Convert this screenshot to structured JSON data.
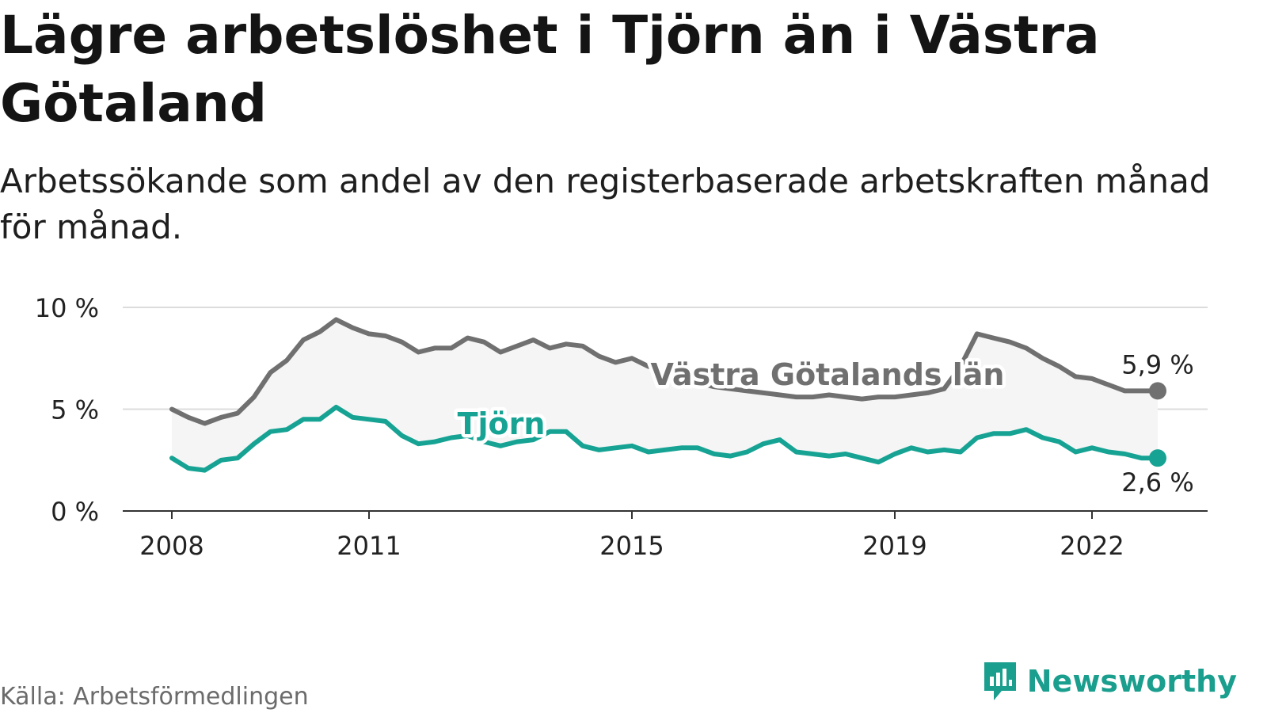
{
  "title": "Lägre arbetslöshet i Tjörn än i Västra Götaland",
  "subtitle": "Arbetssökande som andel av den registerbaserade arbetskraften månad för månad.",
  "source": "Källa: Arbetsförmedlingen",
  "brand": "Newsworthy",
  "chart_data": {
    "type": "line",
    "x_ticks": [
      2008,
      2011,
      2015,
      2019,
      2022
    ],
    "y_ticks": [
      0,
      5,
      10
    ],
    "y_tick_labels": [
      "0 %",
      "5 %",
      "10 %"
    ],
    "xlim": [
      2008.0,
      2023.0
    ],
    "ylim": [
      0,
      10
    ],
    "grid": true,
    "series": [
      {
        "name": "Västra Götalands län",
        "color": "#707070",
        "end_label": "5,9 %",
        "x": [
          2008.0,
          2008.25,
          2008.5,
          2008.75,
          2009.0,
          2009.25,
          2009.5,
          2009.75,
          2010.0,
          2010.25,
          2010.5,
          2010.75,
          2011.0,
          2011.25,
          2011.5,
          2011.75,
          2012.0,
          2012.25,
          2012.5,
          2012.75,
          2013.0,
          2013.25,
          2013.5,
          2013.75,
          2014.0,
          2014.25,
          2014.5,
          2014.75,
          2015.0,
          2015.25,
          2015.5,
          2015.75,
          2016.0,
          2016.25,
          2016.5,
          2016.75,
          2017.0,
          2017.25,
          2017.5,
          2017.75,
          2018.0,
          2018.25,
          2018.5,
          2018.75,
          2019.0,
          2019.25,
          2019.5,
          2019.75,
          2020.0,
          2020.25,
          2020.5,
          2020.75,
          2021.0,
          2021.25,
          2021.5,
          2021.75,
          2022.0,
          2022.25,
          2022.5,
          2022.75,
          2023.0
        ],
        "values": [
          5.0,
          4.6,
          4.3,
          4.6,
          4.8,
          5.6,
          6.8,
          7.4,
          8.4,
          8.8,
          9.4,
          9.0,
          8.7,
          8.6,
          8.3,
          7.8,
          8.0,
          8.0,
          8.5,
          8.3,
          7.8,
          8.1,
          8.4,
          8.0,
          8.2,
          8.1,
          7.6,
          7.3,
          7.5,
          7.1,
          6.8,
          6.5,
          6.3,
          6.1,
          6.0,
          5.9,
          5.8,
          5.7,
          5.6,
          5.6,
          5.7,
          5.6,
          5.5,
          5.6,
          5.6,
          5.7,
          5.8,
          6.0,
          7.1,
          8.7,
          8.5,
          8.3,
          8.0,
          7.5,
          7.1,
          6.6,
          6.5,
          6.2,
          5.9,
          5.9,
          5.9
        ]
      },
      {
        "name": "Tjörn",
        "color": "#16a394",
        "end_label": "2,6 %",
        "x": [
          2008.0,
          2008.25,
          2008.5,
          2008.75,
          2009.0,
          2009.25,
          2009.5,
          2009.75,
          2010.0,
          2010.25,
          2010.5,
          2010.75,
          2011.0,
          2011.25,
          2011.5,
          2011.75,
          2012.0,
          2012.25,
          2012.5,
          2012.75,
          2013.0,
          2013.25,
          2013.5,
          2013.75,
          2014.0,
          2014.25,
          2014.5,
          2014.75,
          2015.0,
          2015.25,
          2015.5,
          2015.75,
          2016.0,
          2016.25,
          2016.5,
          2016.75,
          2017.0,
          2017.25,
          2017.5,
          2017.75,
          2018.0,
          2018.25,
          2018.5,
          2018.75,
          2019.0,
          2019.25,
          2019.5,
          2019.75,
          2020.0,
          2020.25,
          2020.5,
          2020.75,
          2021.0,
          2021.25,
          2021.5,
          2021.75,
          2022.0,
          2022.25,
          2022.5,
          2022.75,
          2023.0
        ],
        "values": [
          2.6,
          2.1,
          2.0,
          2.5,
          2.6,
          3.3,
          3.9,
          4.0,
          4.5,
          4.5,
          5.1,
          4.6,
          4.5,
          4.4,
          3.7,
          3.3,
          3.4,
          3.6,
          3.7,
          3.4,
          3.2,
          3.4,
          3.5,
          3.9,
          3.9,
          3.2,
          3.0,
          3.1,
          3.2,
          2.9,
          3.0,
          3.1,
          3.1,
          2.8,
          2.7,
          2.9,
          3.3,
          3.5,
          2.9,
          2.8,
          2.7,
          2.8,
          2.6,
          2.4,
          2.8,
          3.1,
          2.9,
          3.0,
          2.9,
          3.6,
          3.8,
          3.8,
          4.0,
          3.6,
          3.4,
          2.9,
          3.1,
          2.9,
          2.8,
          2.6,
          2.6
        ]
      }
    ]
  }
}
